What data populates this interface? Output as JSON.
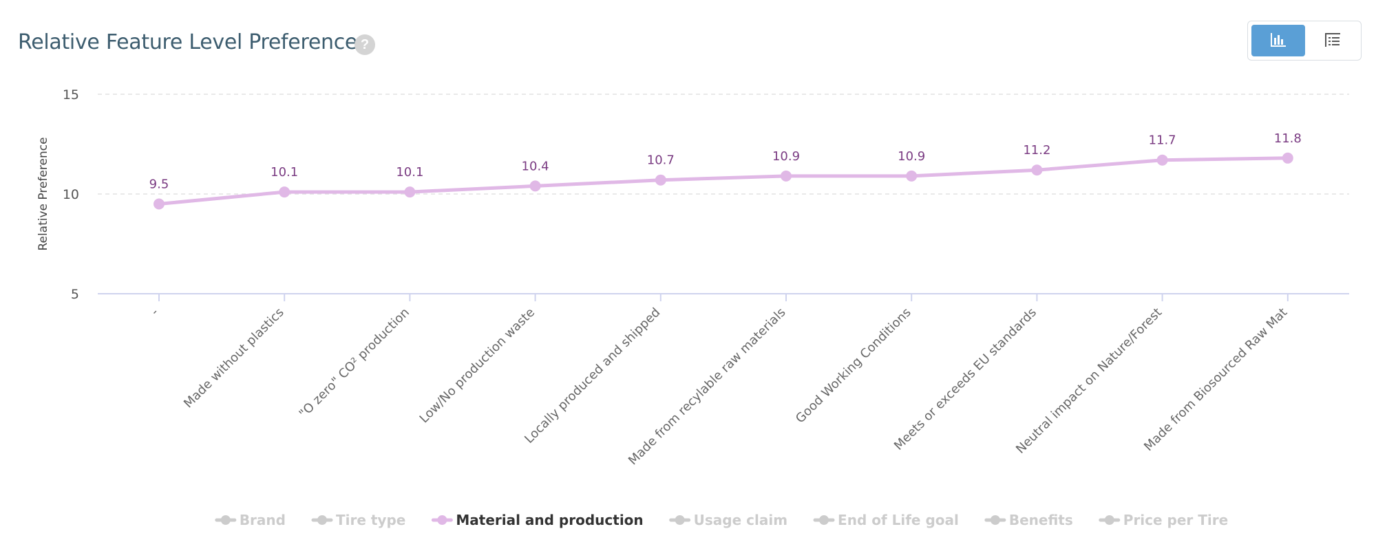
{
  "header": {
    "title": "Relative Feature Level Preference",
    "help_icon": "?"
  },
  "view_toggle": {
    "chart_icon": "bar-chart-icon",
    "table_icon": "table-icon",
    "active": "chart"
  },
  "chart_data": {
    "type": "line",
    "ylabel": "Relative Preference",
    "ylim": [
      5,
      15
    ],
    "yticks": [
      5,
      10,
      15
    ],
    "grid": true,
    "categories": [
      "-",
      "Made without plastics",
      "\"O zero\" CO² production",
      "Low/No production waste",
      "Locally produced and shipped",
      "Made from recylable raw materials",
      "Good Working Conditions",
      "Meets or exceeds EU standards",
      "Neutral impact on Nature/Forest",
      "Made from Biosourced Raw Mat"
    ],
    "series": [
      {
        "name": "Material and production",
        "color": "#e0b8e6",
        "label_color": "#7a3b82",
        "values": [
          9.5,
          10.1,
          10.1,
          10.4,
          10.7,
          10.9,
          10.9,
          11.2,
          11.7,
          11.8
        ]
      }
    ],
    "legend": {
      "position": "bottom",
      "items": [
        {
          "name": "Brand",
          "active": false
        },
        {
          "name": "Tire type",
          "active": false
        },
        {
          "name": "Material and production",
          "active": true
        },
        {
          "name": "Usage claim",
          "active": false
        },
        {
          "name": "End of Life goal",
          "active": false
        },
        {
          "name": "Benefits",
          "active": false
        },
        {
          "name": "Price per Tire",
          "active": false
        }
      ]
    }
  }
}
